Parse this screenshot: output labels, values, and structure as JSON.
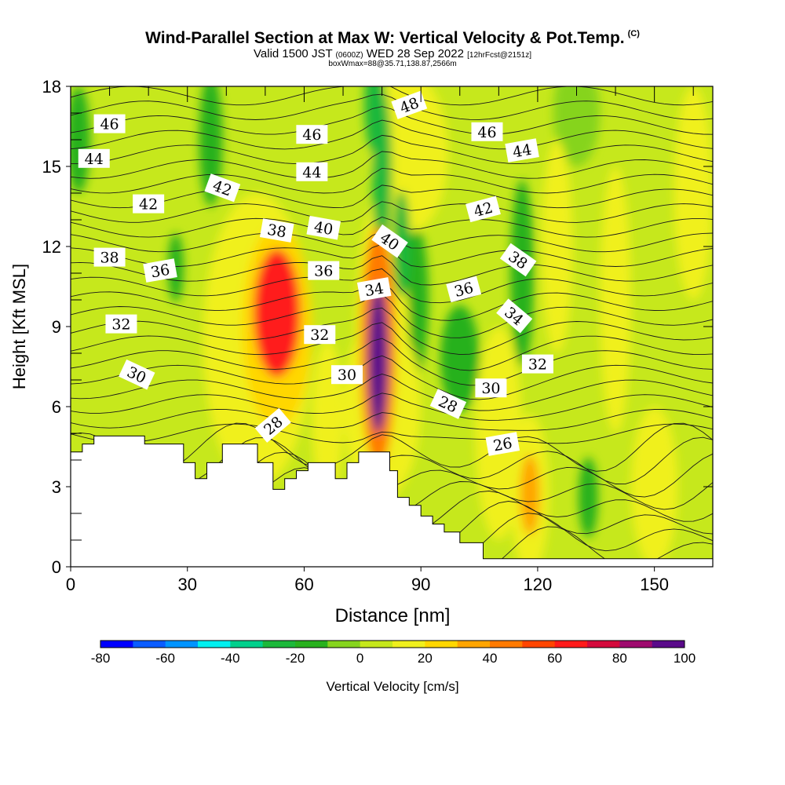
{
  "header": {
    "title": "Wind-Parallel Section at Max W: Vertical Velocity & Pot.Temp.",
    "title_mark": "(C)",
    "valid_prefix": "Valid 1500 JST",
    "valid_utc": "(0600Z)",
    "valid_date": "WED 28 Sep 2022",
    "valid_fcst": "[12hrFcst@2151z]",
    "box_info": "boxWmax=88@35.71,138.87,2566m"
  },
  "colors": {
    "scale": [
      "#0000ff",
      "#0a5cff",
      "#0094ff",
      "#00f0f0",
      "#00d08c",
      "#1cb83a",
      "#28b11e",
      "#86d41e",
      "#c6e81c",
      "#f0f01e",
      "#ffd700",
      "#ffa500",
      "#ff7a00",
      "#ff4500",
      "#ff1a1a",
      "#d40a3c",
      "#9e0a6e",
      "#5a0a8a"
    ]
  },
  "chart_data": {
    "type": "heatmap",
    "xlabel": "Distance [nm]",
    "ylabel": "Height [Kft MSL]",
    "xlim": [
      0,
      165
    ],
    "ylim": [
      0,
      18
    ],
    "x_ticks": [
      "0",
      "30",
      "60",
      "90",
      "120",
      "150"
    ],
    "y_ticks": [
      "0",
      "3",
      "6",
      "9",
      "12",
      "15",
      "18"
    ],
    "colorbar": {
      "label": "Vertical Velocity [cm/s]",
      "ticks": [
        "-80",
        "-60",
        "-40",
        "-20",
        "0",
        "20",
        "40",
        "60",
        "80",
        "100"
      ],
      "range": [
        -80,
        100
      ]
    },
    "terrain": [
      [
        0,
        4.3
      ],
      [
        3,
        4.3
      ],
      [
        3,
        4.6
      ],
      [
        6,
        4.6
      ],
      [
        6,
        4.9
      ],
      [
        19,
        4.9
      ],
      [
        19,
        4.6
      ],
      [
        29,
        4.6
      ],
      [
        29,
        3.9
      ],
      [
        32,
        3.9
      ],
      [
        32,
        3.3
      ],
      [
        35,
        3.3
      ],
      [
        35,
        3.9
      ],
      [
        39,
        3.9
      ],
      [
        39,
        4.6
      ],
      [
        48,
        4.6
      ],
      [
        48,
        3.9
      ],
      [
        52,
        3.9
      ],
      [
        52,
        2.9
      ],
      [
        55,
        2.9
      ],
      [
        55,
        3.3
      ],
      [
        58,
        3.3
      ],
      [
        58,
        3.6
      ],
      [
        61,
        3.6
      ],
      [
        61,
        3.9
      ],
      [
        68,
        3.9
      ],
      [
        68,
        3.3
      ],
      [
        71,
        3.3
      ],
      [
        71,
        3.9
      ],
      [
        74,
        3.9
      ],
      [
        74,
        4.3
      ],
      [
        82,
        4.3
      ],
      [
        82,
        3.6
      ],
      [
        84,
        3.6
      ],
      [
        84,
        2.6
      ],
      [
        87,
        2.6
      ],
      [
        87,
        2.3
      ],
      [
        90,
        2.3
      ],
      [
        90,
        1.9
      ],
      [
        93,
        1.9
      ],
      [
        93,
        1.6
      ],
      [
        96,
        1.6
      ],
      [
        96,
        1.3
      ],
      [
        100,
        1.3
      ],
      [
        100,
        0.9
      ],
      [
        106,
        0.9
      ],
      [
        106,
        0.3
      ],
      [
        165,
        0.3
      ]
    ],
    "theta_labels": [
      {
        "text": "46",
        "x": 10,
        "y": 16.6,
        "rot": 0
      },
      {
        "text": "44",
        "x": 6,
        "y": 15.3,
        "rot": 0
      },
      {
        "text": "42",
        "x": 20,
        "y": 13.6,
        "rot": 0
      },
      {
        "text": "38",
        "x": 10,
        "y": 11.6,
        "rot": 0
      },
      {
        "text": "36",
        "x": 23,
        "y": 11.1,
        "rot": -10
      },
      {
        "text": "32",
        "x": 13,
        "y": 9.1,
        "rot": 0
      },
      {
        "text": "30",
        "x": 17,
        "y": 7.2,
        "rot": 25
      },
      {
        "text": "42",
        "x": 39,
        "y": 14.2,
        "rot": 20
      },
      {
        "text": "38",
        "x": 53,
        "y": 12.6,
        "rot": 10
      },
      {
        "text": "46",
        "x": 62,
        "y": 16.2,
        "rot": 0
      },
      {
        "text": "44",
        "x": 62,
        "y": 14.8,
        "rot": 0
      },
      {
        "text": "40",
        "x": 65,
        "y": 12.7,
        "rot": 10
      },
      {
        "text": "36",
        "x": 65,
        "y": 11.1,
        "rot": 0
      },
      {
        "text": "32",
        "x": 64,
        "y": 8.7,
        "rot": 0
      },
      {
        "text": "30",
        "x": 71,
        "y": 7.2,
        "rot": 0
      },
      {
        "text": "28",
        "x": 52,
        "y": 5.3,
        "rot": -40
      },
      {
        "text": "34",
        "x": 78,
        "y": 10.4,
        "rot": -10
      },
      {
        "text": "40",
        "x": 82,
        "y": 12.2,
        "rot": 35
      },
      {
        "text": "48",
        "x": 87,
        "y": 17.3,
        "rot": -20
      },
      {
        "text": "46",
        "x": 107,
        "y": 16.3,
        "rot": 0
      },
      {
        "text": "44",
        "x": 116,
        "y": 15.6,
        "rot": -10
      },
      {
        "text": "42",
        "x": 106,
        "y": 13.4,
        "rot": -15
      },
      {
        "text": "36",
        "x": 101,
        "y": 10.4,
        "rot": -15
      },
      {
        "text": "38",
        "x": 115,
        "y": 11.5,
        "rot": 35
      },
      {
        "text": "34",
        "x": 114,
        "y": 9.4,
        "rot": 40
      },
      {
        "text": "32",
        "x": 120,
        "y": 7.6,
        "rot": 0
      },
      {
        "text": "30",
        "x": 108,
        "y": 6.7,
        "rot": 0
      },
      {
        "text": "28",
        "x": 97,
        "y": 6.1,
        "rot": 25
      },
      {
        "text": "26",
        "x": 111,
        "y": 4.6,
        "rot": -10
      }
    ],
    "blobs": [
      {
        "x": 53,
        "y": 9.5,
        "rx": 6,
        "ry": 2.4,
        "v": 62
      },
      {
        "x": 53,
        "y": 9.0,
        "rx": 9,
        "ry": 3.8,
        "v": 28
      },
      {
        "x": 48,
        "y": 8.5,
        "rx": 14,
        "ry": 5.5,
        "v": 12
      },
      {
        "x": 79,
        "y": 7.8,
        "rx": 2.5,
        "ry": 2.8,
        "v": 95
      },
      {
        "x": 79,
        "y": 8.2,
        "rx": 4.5,
        "ry": 4.5,
        "v": 48
      },
      {
        "x": 80,
        "y": 8.0,
        "rx": 7,
        "ry": 6,
        "v": 18
      },
      {
        "x": 80,
        "y": 6.0,
        "rx": 10,
        "ry": 3.5,
        "v": 18
      },
      {
        "x": 66,
        "y": 5.5,
        "rx": 4,
        "ry": 3,
        "v": 18
      },
      {
        "x": 87,
        "y": 15.5,
        "rx": 10,
        "ry": 3,
        "v": 16
      },
      {
        "x": 125,
        "y": 12,
        "rx": 4,
        "ry": 4,
        "v": 14
      },
      {
        "x": 110,
        "y": 5,
        "rx": 6,
        "ry": 4,
        "v": 10
      },
      {
        "x": 118,
        "y": 2.7,
        "rx": 2.5,
        "ry": 1.5,
        "v": 35
      },
      {
        "x": 118,
        "y": 2.7,
        "rx": 5,
        "ry": 3,
        "v": 14
      },
      {
        "x": 150,
        "y": 3,
        "rx": 6,
        "ry": 3,
        "v": 10
      },
      {
        "x": 160,
        "y": 14,
        "rx": 5,
        "ry": 4,
        "v": 10
      },
      {
        "x": 140,
        "y": 10,
        "rx": 4,
        "ry": 5,
        "v": 10
      },
      {
        "x": 80,
        "y": 14.8,
        "rx": 2.5,
        "ry": 3.2,
        "v": -28
      },
      {
        "x": 78,
        "y": 17.3,
        "rx": 2.5,
        "ry": 1.8,
        "v": -30
      },
      {
        "x": 85,
        "y": 12.1,
        "rx": 2.2,
        "ry": 2,
        "v": -22
      },
      {
        "x": 88,
        "y": 10,
        "rx": 4,
        "ry": 3,
        "v": -14
      },
      {
        "x": 116,
        "y": 11,
        "rx": 3,
        "ry": 3.5,
        "v": -18
      },
      {
        "x": 133,
        "y": 2.6,
        "rx": 2.5,
        "ry": 1.5,
        "v": -18
      },
      {
        "x": 36,
        "y": 16,
        "rx": 3,
        "ry": 2.5,
        "v": -14
      },
      {
        "x": 27,
        "y": 11.2,
        "rx": 2,
        "ry": 1.3,
        "v": -14
      },
      {
        "x": 2,
        "y": 16,
        "rx": 3,
        "ry": 2,
        "v": -14
      },
      {
        "x": 100,
        "y": 7.8,
        "rx": 5,
        "ry": 2,
        "v": -12
      },
      {
        "x": 130,
        "y": 17,
        "rx": 6,
        "ry": 2,
        "v": -10
      }
    ]
  }
}
